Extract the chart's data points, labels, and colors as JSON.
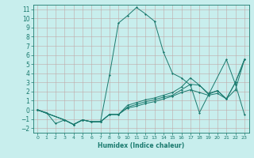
{
  "xlabel": "Humidex (Indice chaleur)",
  "bg_color": "#c8eeed",
  "grid_color": "#c0a8a8",
  "line_color": "#1a7a6e",
  "xlim": [
    -0.5,
    23.5
  ],
  "ylim": [
    -2.5,
    11.5
  ],
  "xticks": [
    0,
    1,
    2,
    3,
    4,
    5,
    6,
    7,
    8,
    9,
    10,
    11,
    12,
    13,
    14,
    15,
    16,
    17,
    18,
    19,
    20,
    21,
    22,
    23
  ],
  "yticks": [
    -2,
    -1,
    0,
    1,
    2,
    3,
    4,
    5,
    6,
    7,
    8,
    9,
    10,
    11
  ],
  "series": [
    {
      "x": [
        0,
        1,
        2,
        3,
        4,
        5,
        6,
        7,
        8,
        9,
        10,
        11,
        12,
        13,
        14,
        15,
        16,
        17,
        18,
        21,
        22,
        23
      ],
      "y": [
        0,
        -0.3,
        -1.5,
        -1.1,
        -1.6,
        -1.1,
        -1.3,
        -1.3,
        3.8,
        9.5,
        10.3,
        11.2,
        10.5,
        9.7,
        6.3,
        4.0,
        3.5,
        2.7,
        -0.3,
        5.5,
        2.8,
        -0.5
      ]
    },
    {
      "x": [
        0,
        3,
        4,
        5,
        6,
        7,
        8,
        9,
        10,
        11,
        12,
        13,
        14,
        15,
        16,
        17,
        18,
        19,
        20,
        21,
        22,
        23
      ],
      "y": [
        0,
        -1.1,
        -1.6,
        -1.1,
        -1.3,
        -1.3,
        -0.5,
        -0.5,
        0.5,
        0.8,
        1.1,
        1.3,
        1.6,
        1.9,
        2.5,
        3.5,
        2.7,
        1.8,
        2.1,
        1.2,
        3.0,
        5.5
      ]
    },
    {
      "x": [
        0,
        3,
        4,
        5,
        6,
        7,
        8,
        9,
        10,
        11,
        12,
        13,
        14,
        15,
        16,
        17,
        18,
        19,
        20,
        21,
        22,
        23
      ],
      "y": [
        0,
        -1.1,
        -1.6,
        -1.1,
        -1.3,
        -1.3,
        -0.5,
        -0.5,
        0.3,
        0.6,
        0.9,
        1.1,
        1.4,
        1.6,
        2.2,
        2.8,
        2.7,
        1.7,
        2.1,
        1.2,
        3.0,
        5.5
      ]
    },
    {
      "x": [
        0,
        3,
        4,
        5,
        6,
        7,
        8,
        9,
        10,
        11,
        12,
        13,
        14,
        15,
        16,
        17,
        18,
        19,
        20,
        21,
        22,
        23
      ],
      "y": [
        0,
        -1.1,
        -1.6,
        -1.1,
        -1.3,
        -1.3,
        -0.5,
        -0.5,
        0.2,
        0.4,
        0.7,
        0.9,
        1.2,
        1.5,
        1.9,
        2.2,
        1.9,
        1.6,
        1.8,
        1.2,
        2.2,
        5.5
      ]
    }
  ]
}
